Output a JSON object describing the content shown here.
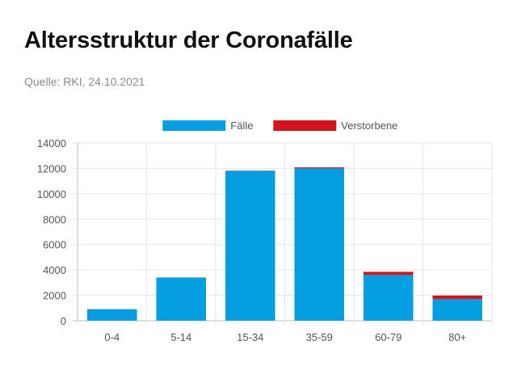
{
  "header": {
    "title": "Altersstruktur der Coronafälle",
    "source": "Quelle: RKI, 24.10.2021"
  },
  "chart_data": {
    "type": "bar",
    "stacked": true,
    "title": "",
    "xlabel": "",
    "ylabel": "",
    "categories": [
      "0-4",
      "5-14",
      "15-34",
      "35-59",
      "60-79",
      "80+"
    ],
    "series": [
      {
        "name": "Fälle",
        "color": "#059ee0",
        "values": [
          900,
          3400,
          11800,
          12000,
          3600,
          1700
        ]
      },
      {
        "name": "Verstorbene",
        "color": "#d3141d",
        "values": [
          5,
          5,
          20,
          80,
          250,
          280
        ]
      }
    ],
    "ylim": [
      0,
      14000
    ],
    "yticks": [
      0,
      2000,
      4000,
      6000,
      8000,
      10000,
      12000,
      14000
    ],
    "grid": true,
    "legend_position": "top-center"
  }
}
